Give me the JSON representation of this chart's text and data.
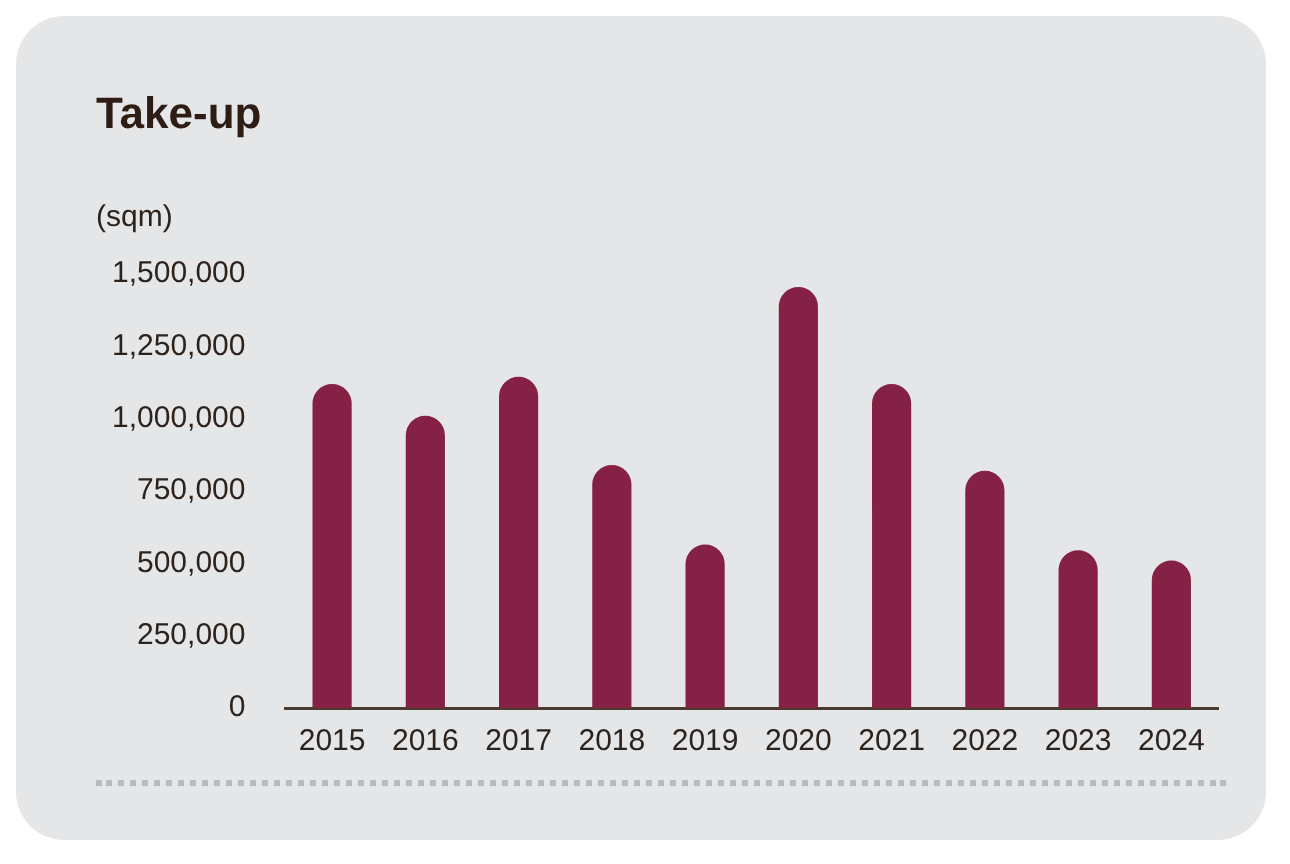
{
  "chart_data": {
    "type": "bar",
    "title": "Take-up",
    "ylabel": "(sqm)",
    "categories": [
      "2015",
      "2016",
      "2017",
      "2018",
      "2019",
      "2020",
      "2021",
      "2022",
      "2023",
      "2024"
    ],
    "values": [
      1120000,
      1010000,
      1145000,
      840000,
      565000,
      1455000,
      1120000,
      820000,
      545000,
      510000
    ],
    "color": "#842144",
    "ylim": [
      0,
      1500000
    ],
    "yticks": [
      0,
      {
        "value": 250000,
        "label": "250,000"
      },
      {
        "value": 500000,
        "label": "500,000"
      },
      {
        "value": 750000,
        "label": "750,000"
      },
      {
        "value": 1000000,
        "label": "1,000,000"
      },
      {
        "value": 1250000,
        "label": "1,250,000"
      },
      {
        "value": 1500000,
        "label": "1,500,000"
      }
    ],
    "grid": false,
    "legend": false
  }
}
